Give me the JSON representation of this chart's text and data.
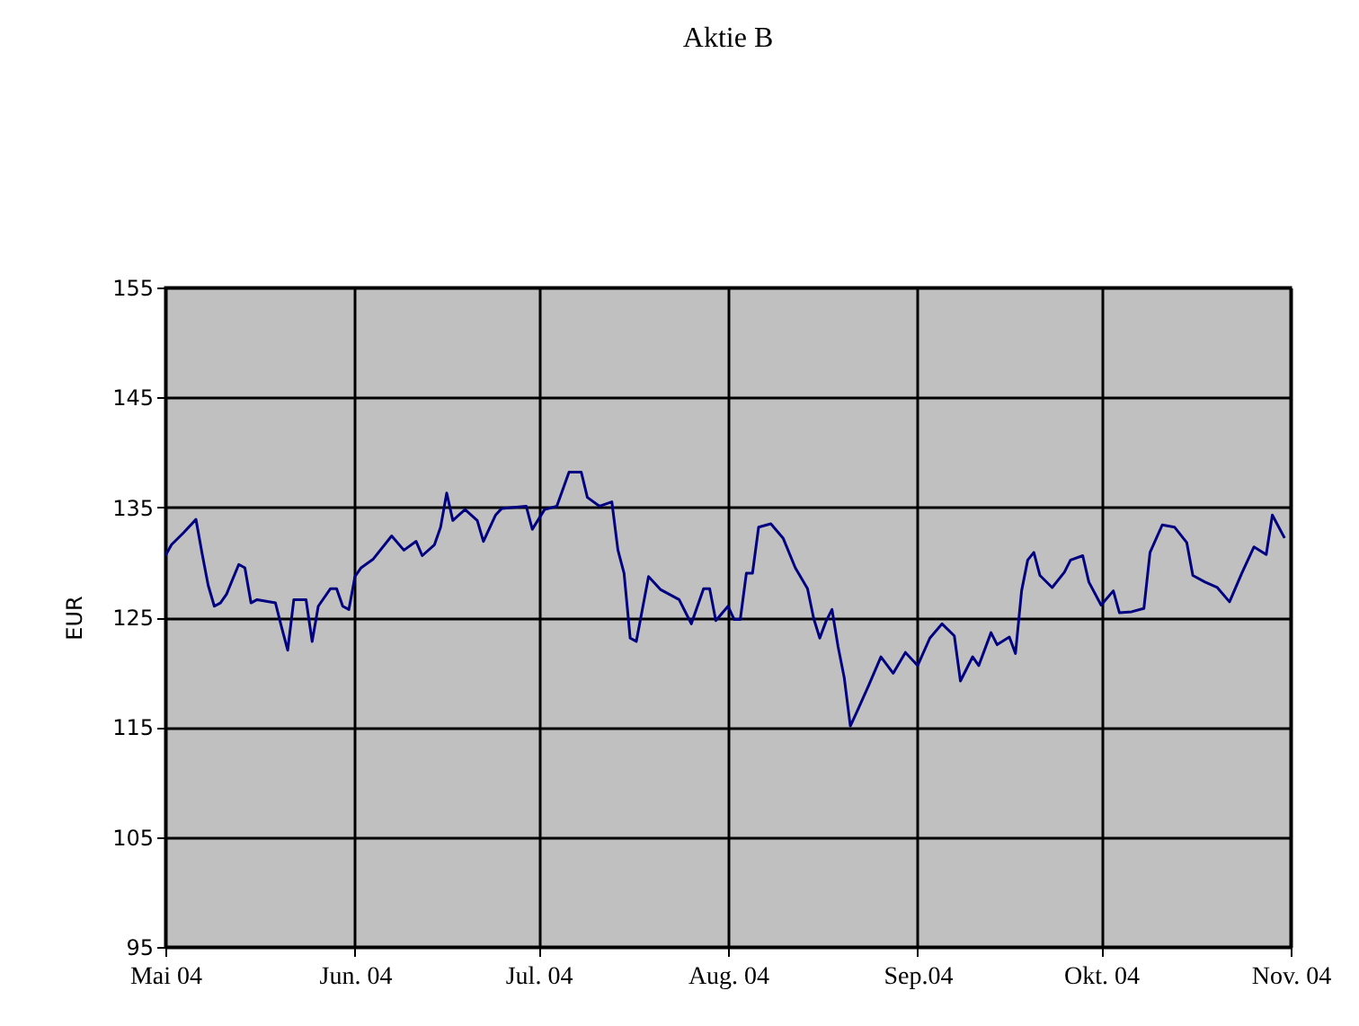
{
  "chart_data": {
    "type": "line",
    "title": "Aktie B",
    "ylabel": "EUR",
    "xlim": [
      "2004-05-01",
      "2004-11-01"
    ],
    "xticks": [
      {
        "value": "2004-05-01",
        "label": "Mai 04"
      },
      {
        "value": "2004-06-01",
        "label": "Jun. 04"
      },
      {
        "value": "2004-07-01",
        "label": "Jul. 04"
      },
      {
        "value": "2004-08-01",
        "label": "Aug. 04"
      },
      {
        "value": "2004-09-01",
        "label": "Sep.04"
      },
      {
        "value": "2004-10-01",
        "label": "Okt. 04"
      },
      {
        "value": "2004-11-01",
        "label": "Nov. 04"
      }
    ],
    "ylim": [
      95,
      155
    ],
    "yticks": [
      95,
      105,
      115,
      125,
      135,
      145,
      155
    ],
    "grid": true,
    "x": [
      "2004-05-01",
      "2004-05-02",
      "2004-05-04",
      "2004-05-06",
      "2004-05-07",
      "2004-05-08",
      "2004-05-09",
      "2004-05-10",
      "2004-05-11",
      "2004-05-13",
      "2004-05-14",
      "2004-05-15",
      "2004-05-16",
      "2004-05-19",
      "2004-05-20",
      "2004-05-21",
      "2004-05-22",
      "2004-05-24",
      "2004-05-25",
      "2004-05-26",
      "2004-05-28",
      "2004-05-29",
      "2004-05-30",
      "2004-05-31",
      "2004-06-01",
      "2004-06-02",
      "2004-06-04",
      "2004-06-07",
      "2004-06-09",
      "2004-06-11",
      "2004-06-12",
      "2004-06-14",
      "2004-06-15",
      "2004-06-16",
      "2004-06-17",
      "2004-06-19",
      "2004-06-21",
      "2004-06-22",
      "2004-06-24",
      "2004-06-25",
      "2004-06-29",
      "2004-06-30",
      "2004-07-02",
      "2004-07-04",
      "2004-07-06",
      "2004-07-08",
      "2004-07-09",
      "2004-07-11",
      "2004-07-13",
      "2004-07-14",
      "2004-07-15",
      "2004-07-16",
      "2004-07-17",
      "2004-07-19",
      "2004-07-21",
      "2004-07-24",
      "2004-07-26",
      "2004-07-28",
      "2004-07-29",
      "2004-07-30",
      "2004-08-01",
      "2004-08-02",
      "2004-08-03",
      "2004-08-04",
      "2004-08-05",
      "2004-08-06",
      "2004-08-08",
      "2004-08-10",
      "2004-08-12",
      "2004-08-14",
      "2004-08-15",
      "2004-08-16",
      "2004-08-17",
      "2004-08-18",
      "2004-08-19",
      "2004-08-20",
      "2004-08-21",
      "2004-08-22",
      "2004-08-24",
      "2004-08-26",
      "2004-08-28",
      "2004-08-30",
      "2004-09-01",
      "2004-09-03",
      "2004-09-05",
      "2004-09-07",
      "2004-09-08",
      "2004-09-10",
      "2004-09-11",
      "2004-09-13",
      "2004-09-14",
      "2004-09-16",
      "2004-09-17",
      "2004-09-18",
      "2004-09-19",
      "2004-09-20",
      "2004-09-21",
      "2004-09-23",
      "2004-09-25",
      "2004-09-26",
      "2004-09-28",
      "2004-09-29",
      "2004-10-01",
      "2004-10-03",
      "2004-10-04",
      "2004-10-06",
      "2004-10-08",
      "2004-10-09",
      "2004-10-11",
      "2004-10-13",
      "2004-10-15",
      "2004-10-16",
      "2004-10-18",
      "2004-10-20",
      "2004-10-22",
      "2004-10-24",
      "2004-10-26",
      "2004-10-28",
      "2004-10-29",
      "2004-10-31"
    ],
    "series": [
      {
        "color": "#000080",
        "values": [
          130.6,
          131.6,
          132.7,
          133.9,
          130.8,
          127.9,
          126,
          126.3,
          127.1,
          129.8,
          129.5,
          126.3,
          126.6,
          126.3,
          124.1,
          122,
          126.6,
          126.6,
          122.8,
          126,
          127.6,
          127.6,
          126,
          125.7,
          128.7,
          129.5,
          130.3,
          132.4,
          131.1,
          131.9,
          130.6,
          131.6,
          133.2,
          136.3,
          133.8,
          134.8,
          133.8,
          131.9,
          134.3,
          134.9,
          135.1,
          133,
          134.8,
          135.1,
          138.2,
          138.2,
          135.9,
          135.1,
          135.5,
          131.1,
          129,
          123.1,
          122.8,
          128.7,
          127.5,
          126.6,
          124.4,
          127.6,
          127.6,
          124.7,
          126,
          124.8,
          124.8,
          129,
          129,
          133.2,
          133.5,
          132.2,
          129.5,
          127.6,
          124.9,
          123.1,
          124.6,
          125.7,
          122.3,
          119.5,
          115.1,
          116.3,
          118.8,
          121.4,
          119.9,
          121.8,
          120.6,
          123.1,
          124.4,
          123.3,
          119.2,
          121.4,
          120.6,
          123.6,
          122.5,
          123.2,
          121.7,
          127.4,
          130.2,
          130.9,
          128.8,
          127.7,
          129.1,
          130.2,
          130.6,
          128.2,
          126.1,
          127.4,
          125.4,
          125.5,
          125.8,
          130.9,
          133.4,
          133.2,
          131.8,
          128.8,
          128.2,
          127.7,
          126.4,
          129,
          131.4,
          130.7,
          134.3,
          132.2
        ]
      }
    ]
  }
}
